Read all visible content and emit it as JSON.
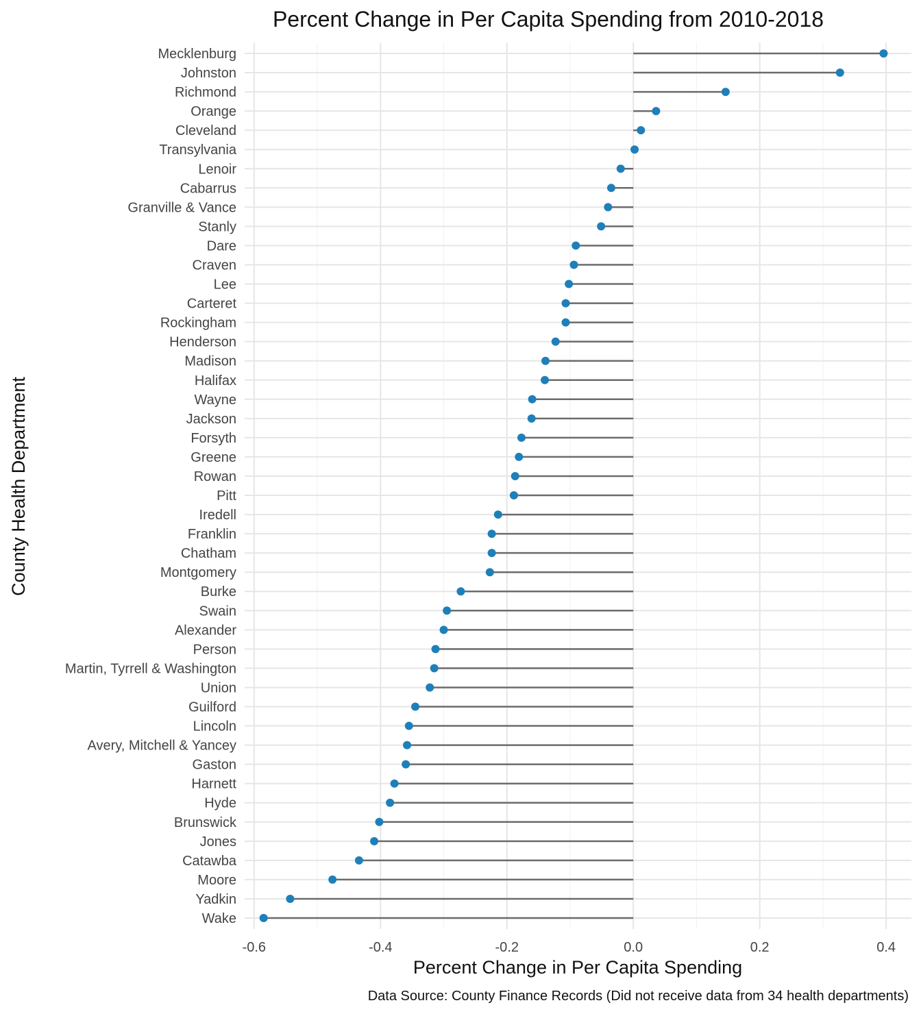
{
  "chart_data": {
    "type": "lollipop",
    "title": "Percent Change in Per Capita Spending from 2010-2018",
    "xlabel": "Percent Change in Per Capita Spending",
    "ylabel": "County Health Department",
    "caption": "Data Source: County Finance Records (Did not receive data from 34 health departments)",
    "xlim": [
      -0.615,
      0.44
    ],
    "x_ticks": [
      -0.6,
      -0.4,
      -0.2,
      0.0,
      0.2,
      0.4
    ],
    "x_tick_labels": [
      "-0.6",
      "-0.4",
      "-0.2",
      "0.0",
      "0.2",
      "0.4"
    ],
    "grid": true,
    "point_color": "#1f7fb8",
    "stem_color": "#6b6b6b",
    "categories": [
      "Mecklenburg",
      "Johnston",
      "Richmond",
      "Orange",
      "Cleveland",
      "Transylvania",
      "Lenoir",
      "Cabarrus",
      "Granville & Vance",
      "Stanly",
      "Dare",
      "Craven",
      "Lee",
      "Carteret",
      "Rockingham",
      "Henderson",
      "Madison",
      "Halifax",
      "Wayne",
      "Jackson",
      "Forsyth",
      "Greene",
      "Rowan",
      "Pitt",
      "Iredell",
      "Franklin",
      "Chatham",
      "Montgomery",
      "Burke",
      "Swain",
      "Alexander",
      "Person",
      "Martin, Tyrrell & Washington",
      "Union",
      "Guilford",
      "Lincoln",
      "Avery, Mitchell & Yancey",
      "Gaston",
      "Harnett",
      "Hyde",
      "Brunswick",
      "Jones",
      "Catawba",
      "Moore",
      "Yadkin",
      "Wake"
    ],
    "values": [
      0.396,
      0.327,
      0.146,
      0.036,
      0.012,
      0.002,
      -0.02,
      -0.035,
      -0.04,
      -0.051,
      -0.091,
      -0.094,
      -0.102,
      -0.107,
      -0.107,
      -0.123,
      -0.139,
      -0.14,
      -0.16,
      -0.161,
      -0.177,
      -0.181,
      -0.187,
      -0.189,
      -0.214,
      -0.224,
      -0.224,
      -0.227,
      -0.273,
      -0.295,
      -0.3,
      -0.313,
      -0.315,
      -0.322,
      -0.345,
      -0.355,
      -0.358,
      -0.36,
      -0.378,
      -0.385,
      -0.402,
      -0.41,
      -0.434,
      -0.476,
      -0.543,
      -0.585
    ]
  }
}
